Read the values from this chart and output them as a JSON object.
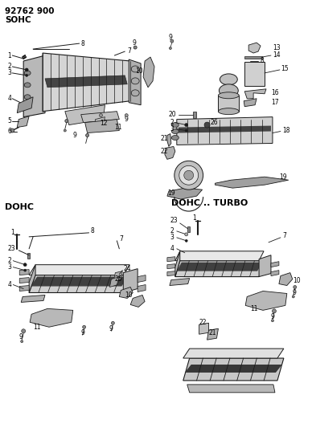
{
  "title_line1": "92762 900",
  "title_line2": "SOHC",
  "section_dohc": "DOHC",
  "section_dohc_turbo": "DOHC .. TURBO",
  "bg_color": "#ffffff",
  "lc": "#1a1a1a",
  "tc": "#000000",
  "figsize": [
    3.88,
    5.33
  ],
  "dpi": 100,
  "gray1": "#c8c8c8",
  "gray2": "#a0a0a0",
  "gray3": "#e0e0e0",
  "dark": "#505050"
}
